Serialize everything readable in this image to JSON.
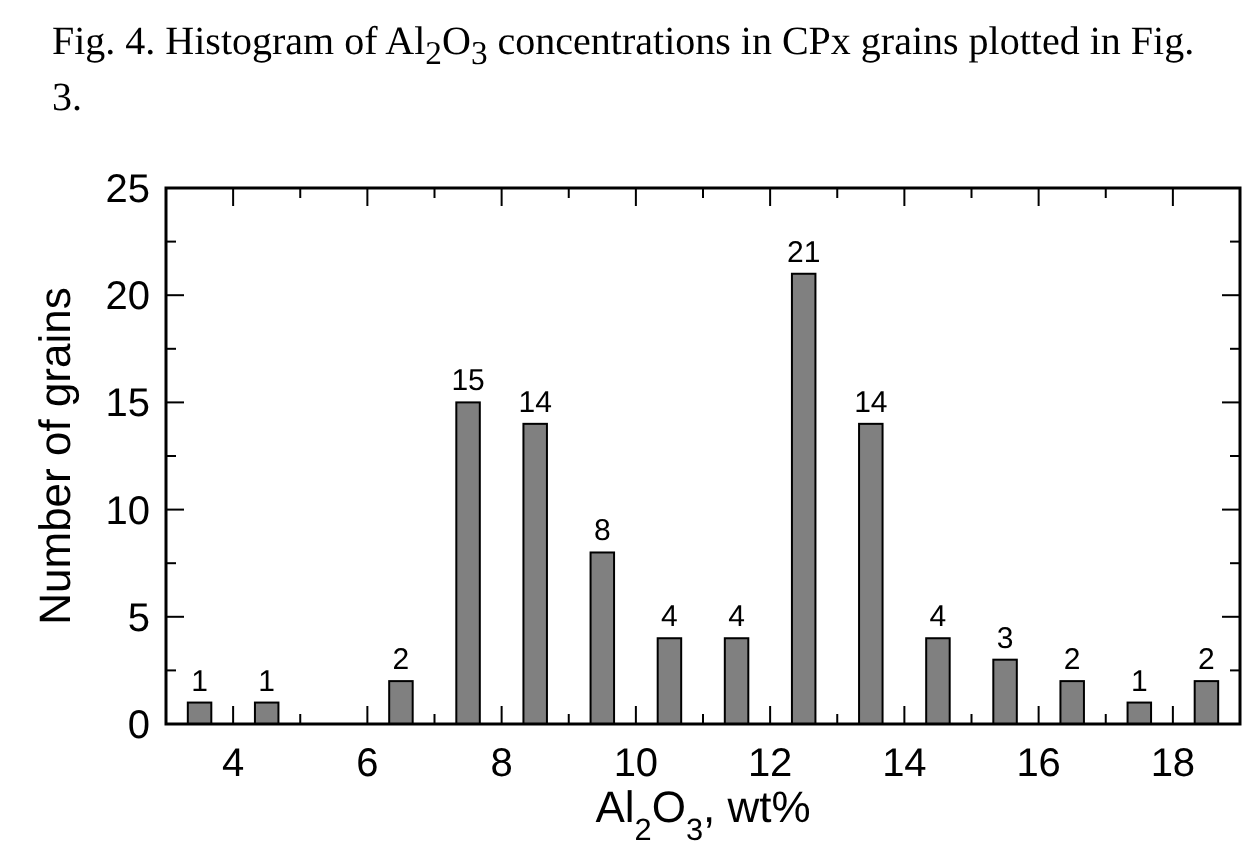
{
  "chart_data": {
    "type": "bar",
    "title": "Fig. 4. Histogram of Al$_{2}$O$_{3}$ concentrations in CPx grains plotted in Fig. 3.",
    "xlabel": "Al$_{2}$O$_{3}$, wt%",
    "ylabel": "Number of grains",
    "x": [
      3.5,
      4.5,
      6.5,
      7.5,
      8.5,
      9.5,
      10.5,
      11.5,
      12.5,
      13.5,
      14.5,
      15.5,
      16.5,
      17.5,
      18.5
    ],
    "values": [
      1,
      1,
      2,
      15,
      14,
      8,
      4,
      4,
      21,
      14,
      4,
      3,
      2,
      1,
      2
    ],
    "color": "#808080",
    "data_labels": true,
    "grid": false,
    "xlim": [
      3,
      19
    ],
    "xticks": [
      4,
      {
        "value": 5,
        "label": null
      },
      6,
      {
        "value": 7,
        "label": null
      },
      8,
      {
        "value": 9,
        "label": null
      },
      10,
      {
        "value": 11,
        "label": null
      },
      12,
      {
        "value": 13,
        "label": null
      },
      14,
      {
        "value": 15,
        "label": null
      },
      16,
      {
        "value": 17,
        "label": null
      },
      18
    ],
    "ylim": [
      0,
      25
    ],
    "yticks": [
      0,
      {
        "value": 2.5,
        "label": null
      },
      5,
      {
        "value": 7.5,
        "label": null
      },
      10,
      {
        "value": 12.5,
        "label": null
      },
      15,
      {
        "value": 17.5,
        "label": null
      },
      20,
      {
        "value": 22.5,
        "label": null
      },
      25
    ]
  }
}
